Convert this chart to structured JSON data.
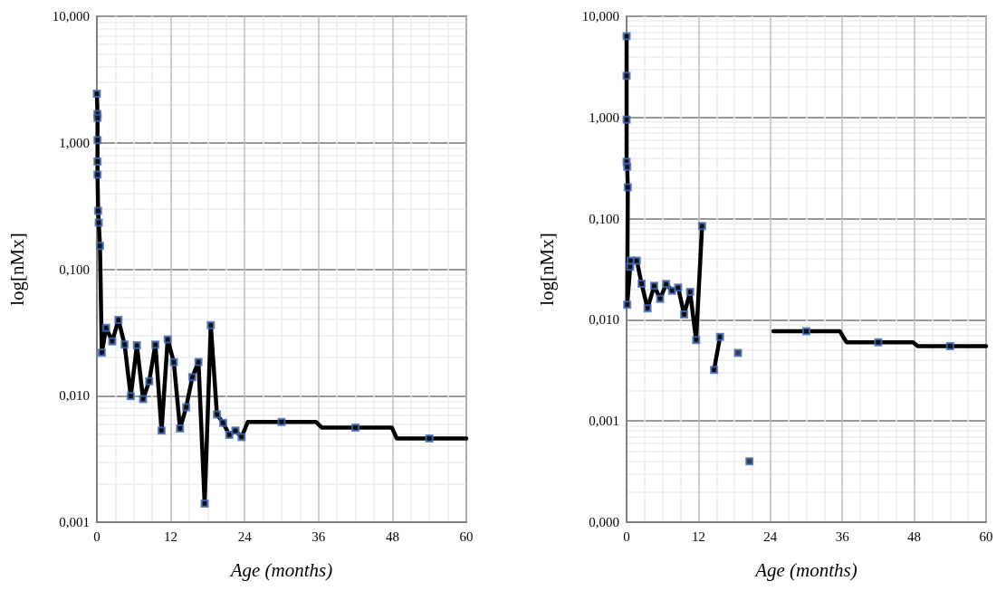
{
  "chart_data": [
    {
      "type": "line",
      "xlabel": "Age (months)",
      "ylabel": "log[nMx]",
      "log": "y",
      "grid": true,
      "xlim": [
        0,
        60
      ],
      "xticks": [
        0,
        12,
        24,
        36,
        48,
        60
      ],
      "ylim": [
        0.001,
        10
      ],
      "yticks": [
        {
          "value": 0.001,
          "label": "0,001"
        },
        {
          "value": 0.01,
          "label": "0,010"
        },
        {
          "value": 0.1,
          "label": "0,100"
        },
        {
          "value": 1,
          "label": "1,000"
        },
        {
          "value": 10,
          "label": "10,000"
        }
      ],
      "series": [
        {
          "type": "line",
          "color": "#000000",
          "marker": "none",
          "x": [
            0,
            0.1,
            0.1,
            0.1,
            0.1,
            0.1,
            0.2,
            0.3,
            0.5,
            0.8,
            1.5,
            2.5,
            3.5,
            4.5,
            5.5,
            6.5,
            7.5,
            8.5,
            9.5,
            10.5,
            11.5,
            12.5,
            13.5,
            14.5,
            15.5,
            16.5,
            17.5,
            18.5,
            19.5,
            20.5,
            21.5,
            22.5,
            23.5,
            24.5,
            30,
            35.6,
            36.5,
            42,
            47.9,
            48.7,
            54,
            60
          ],
          "values": [
            2.44,
            1.69,
            1.57,
            1.05,
            0.71,
            0.56,
            0.29,
            0.234,
            0.153,
            0.0219,
            0.0344,
            0.0269,
            0.0398,
            0.0254,
            0.0099,
            0.0251,
            0.0094,
            0.013,
            0.0254,
            0.0053,
            0.0279,
            0.0184,
            0.0055,
            0.0081,
            0.014,
            0.0185,
            0.0014,
            0.0361,
            0.0071,
            0.0061,
            0.0049,
            0.0053,
            0.0047,
            0.0062,
            0.0062,
            0.0062,
            0.0056,
            0.0056,
            0.0056,
            0.0046,
            0.0046,
            0.0046
          ]
        },
        {
          "type": "scatter",
          "color": "#4472c4",
          "marker": "square",
          "x": [
            0,
            0.1,
            0.1,
            0.1,
            0.1,
            0.1,
            0.2,
            0.3,
            0.5,
            0.8,
            1.5,
            2.5,
            3.5,
            4.5,
            5.5,
            6.5,
            7.5,
            8.5,
            9.5,
            10.5,
            11.5,
            12.5,
            13.5,
            14.5,
            15.5,
            16.5,
            17.5,
            18.5,
            19.5,
            20.5,
            21.5,
            22.5,
            23.5,
            30,
            42,
            54
          ],
          "values": [
            2.44,
            1.69,
            1.57,
            1.05,
            0.71,
            0.56,
            0.29,
            0.234,
            0.153,
            0.0219,
            0.0344,
            0.0269,
            0.0398,
            0.0254,
            0.0099,
            0.0251,
            0.0094,
            0.013,
            0.0254,
            0.0053,
            0.0279,
            0.0184,
            0.0055,
            0.0081,
            0.014,
            0.0185,
            0.0014,
            0.0361,
            0.0071,
            0.0061,
            0.0049,
            0.0053,
            0.0047,
            0.0062,
            0.0056,
            0.0046
          ]
        }
      ]
    },
    {
      "type": "line",
      "xlabel": "Age (months)",
      "ylabel": "log[nMx]",
      "log": "y",
      "grid": true,
      "xlim": [
        0,
        60
      ],
      "xticks": [
        0,
        12,
        24,
        36,
        48,
        60
      ],
      "ylim": [
        0.0001,
        10
      ],
      "yticks": [
        {
          "value": 0.0001,
          "label": "0,000"
        },
        {
          "value": 0.001,
          "label": "0,001"
        },
        {
          "value": 0.01,
          "label": "0,010"
        },
        {
          "value": 0.1,
          "label": "0,100"
        },
        {
          "value": 1,
          "label": "1,000"
        },
        {
          "value": 10,
          "label": "10,000"
        }
      ],
      "series": [
        {
          "type": "line",
          "color": "#000000",
          "marker": "none",
          "x": [
            0,
            0,
            0,
            0,
            0.1,
            0.2,
            0.1,
            0.6,
            0.7,
            1.7,
            2.5,
            3.5,
            4.6,
            5.6,
            6.6,
            7.6,
            8.6,
            9.6,
            10.6,
            11.6,
            12.6,
            13.6,
            14.6,
            15.6,
            17,
            24.5,
            30,
            35.6,
            36.7,
            42,
            47.8,
            48.6,
            54,
            60
          ],
          "values": [
            6.36,
            2.58,
            0.95,
            0.365,
            0.325,
            0.204,
            0.0141,
            0.0334,
            0.0385,
            0.0385,
            0.0228,
            0.013,
            0.0217,
            0.0161,
            0.0226,
            0.0194,
            0.0208,
            0.0113,
            0.0189,
            0.0063,
            0.0845,
            null,
            0.0032,
            0.0068,
            null,
            0.0077,
            0.0077,
            0.0077,
            0.006,
            0.006,
            0.006,
            0.0055,
            0.0055,
            0.0055
          ]
        },
        {
          "type": "scatter",
          "color": "#4472c4",
          "marker": "square",
          "x": [
            0,
            0,
            0,
            0,
            0.1,
            0.2,
            0.1,
            0.6,
            0.7,
            1.7,
            2.5,
            3.5,
            4.6,
            5.6,
            6.6,
            7.6,
            8.6,
            9.6,
            10.6,
            11.6,
            12.6,
            14.6,
            15.6,
            18.6,
            20.5,
            30,
            42,
            54
          ],
          "values": [
            6.36,
            2.58,
            0.95,
            0.365,
            0.325,
            0.204,
            0.0141,
            0.0334,
            0.0385,
            0.0385,
            0.0228,
            0.013,
            0.0217,
            0.0161,
            0.0226,
            0.0194,
            0.0208,
            0.0113,
            0.0189,
            0.0063,
            0.0845,
            0.0032,
            0.0068,
            0.0047,
            0.0004,
            0.0077,
            0.006,
            0.0055
          ]
        }
      ]
    }
  ]
}
